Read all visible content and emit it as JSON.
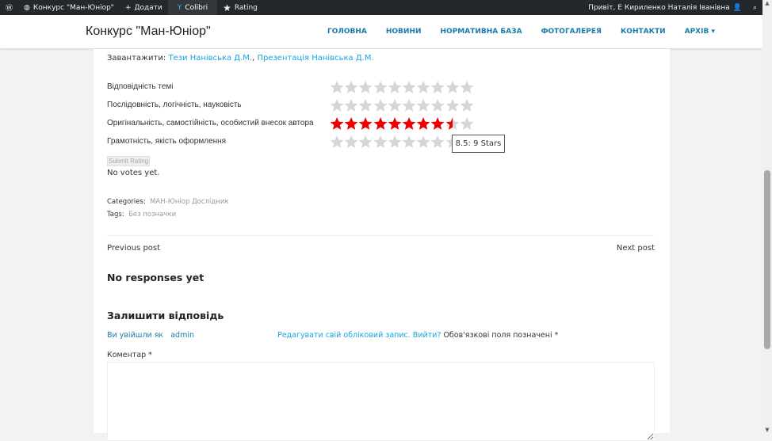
{
  "adminbar": {
    "site": "Конкурс \"Ман-Юніор\"",
    "add": "Додати",
    "colibri": "Colibri",
    "rating": "Rating",
    "greeting": "Привіт, Е Кириленко Наталія Іванівна"
  },
  "header": {
    "title": "Конкурс \"Ман-Юніор\"",
    "nav": [
      "ГОЛОВНА",
      "НОВИНИ",
      "НОРМАТИВНА БАЗА",
      "ФОТОГАЛЕРЕЯ",
      "КОНТАКТИ",
      "АРХІВ"
    ]
  },
  "download": {
    "label": "Завантажити:",
    "links": [
      "Тези Нанівська Д.М.",
      "Презентація Нанівська Д.М."
    ]
  },
  "ratings": [
    {
      "label": "Відповідність темі",
      "value": 0
    },
    {
      "label": "Послідовність, логічність, науковість",
      "value": 0
    },
    {
      "label": "Оригінальність, самостійність, особистий внесок автора",
      "value": 8.5
    },
    {
      "label": "Грамотність, якість оформлення",
      "value": 0
    }
  ],
  "max_stars": 10,
  "star_color": "#ee0000",
  "tooltip": "8.5: 9 Stars",
  "submit": "Submit Rating",
  "votes": "No votes yet.",
  "categories": {
    "label": "Categories:",
    "value": "МАН-Юніор Дослідник"
  },
  "tags": {
    "label": "Tags:",
    "value": "Без позначки"
  },
  "prev": "Previous post",
  "next": "Next post",
  "responses": "No responses yet",
  "reply": {
    "title": "Залишити відповідь",
    "logged": "Ви увійшли як",
    "user": "admin",
    "edit": "Редагувати свій обліковий запис. Вийти?",
    "required": "Обов'язкові поля позначені *",
    "comment_label": "Коментар *"
  }
}
